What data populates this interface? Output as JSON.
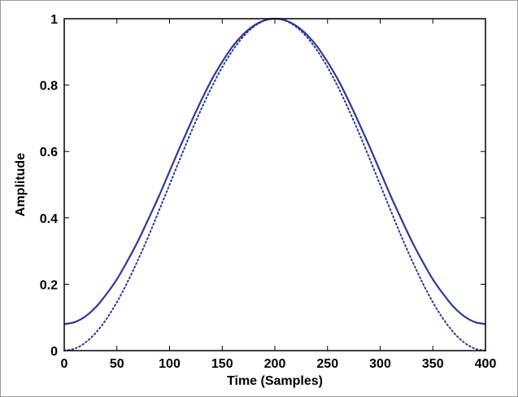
{
  "chart_data": {
    "type": "line",
    "title": "",
    "xlabel": "Time (Samples)",
    "ylabel": "Amplitude",
    "xlim": [
      0,
      400
    ],
    "ylim": [
      0,
      1
    ],
    "xticks": [
      0,
      50,
      100,
      150,
      200,
      250,
      300,
      350,
      400
    ],
    "yticks": [
      0,
      0.2,
      0.4,
      0.6,
      0.8,
      1
    ],
    "ytick_labels": [
      "0",
      "0.2",
      "0.4",
      "0.6",
      "0.8",
      "1"
    ],
    "grid": false,
    "colors": {
      "series": "#2e3a97",
      "axis": "#000000"
    },
    "series": [
      {
        "style": "solid",
        "x": [
          0,
          10,
          20,
          30,
          40,
          50,
          60,
          70,
          80,
          90,
          100,
          110,
          120,
          130,
          140,
          150,
          160,
          170,
          180,
          190,
          200,
          210,
          220,
          230,
          240,
          250,
          260,
          270,
          280,
          290,
          300,
          310,
          320,
          330,
          340,
          350,
          360,
          370,
          380,
          390,
          400
        ],
        "values": [
          0.08,
          0.086,
          0.103,
          0.131,
          0.17,
          0.215,
          0.27,
          0.33,
          0.397,
          0.466,
          0.54,
          0.614,
          0.685,
          0.753,
          0.816,
          0.87,
          0.917,
          0.953,
          0.979,
          0.995,
          1.0,
          0.995,
          0.979,
          0.953,
          0.917,
          0.87,
          0.816,
          0.753,
          0.685,
          0.614,
          0.54,
          0.466,
          0.397,
          0.33,
          0.27,
          0.215,
          0.17,
          0.131,
          0.103,
          0.086,
          0.08
        ]
      },
      {
        "style": "dotted",
        "x": [
          0,
          10,
          20,
          30,
          40,
          50,
          60,
          70,
          80,
          90,
          100,
          110,
          120,
          130,
          140,
          150,
          160,
          170,
          180,
          190,
          200,
          210,
          220,
          230,
          240,
          250,
          260,
          270,
          280,
          290,
          300,
          310,
          320,
          330,
          340,
          350,
          360,
          370,
          380,
          390,
          400
        ],
        "values": [
          0.0,
          0.006,
          0.024,
          0.054,
          0.095,
          0.146,
          0.206,
          0.273,
          0.345,
          0.422,
          0.5,
          0.578,
          0.655,
          0.727,
          0.794,
          0.854,
          0.905,
          0.946,
          0.976,
          0.994,
          1.0,
          0.994,
          0.976,
          0.946,
          0.905,
          0.854,
          0.794,
          0.727,
          0.655,
          0.578,
          0.5,
          0.422,
          0.345,
          0.273,
          0.206,
          0.146,
          0.095,
          0.054,
          0.024,
          0.006,
          0.0
        ]
      }
    ]
  }
}
